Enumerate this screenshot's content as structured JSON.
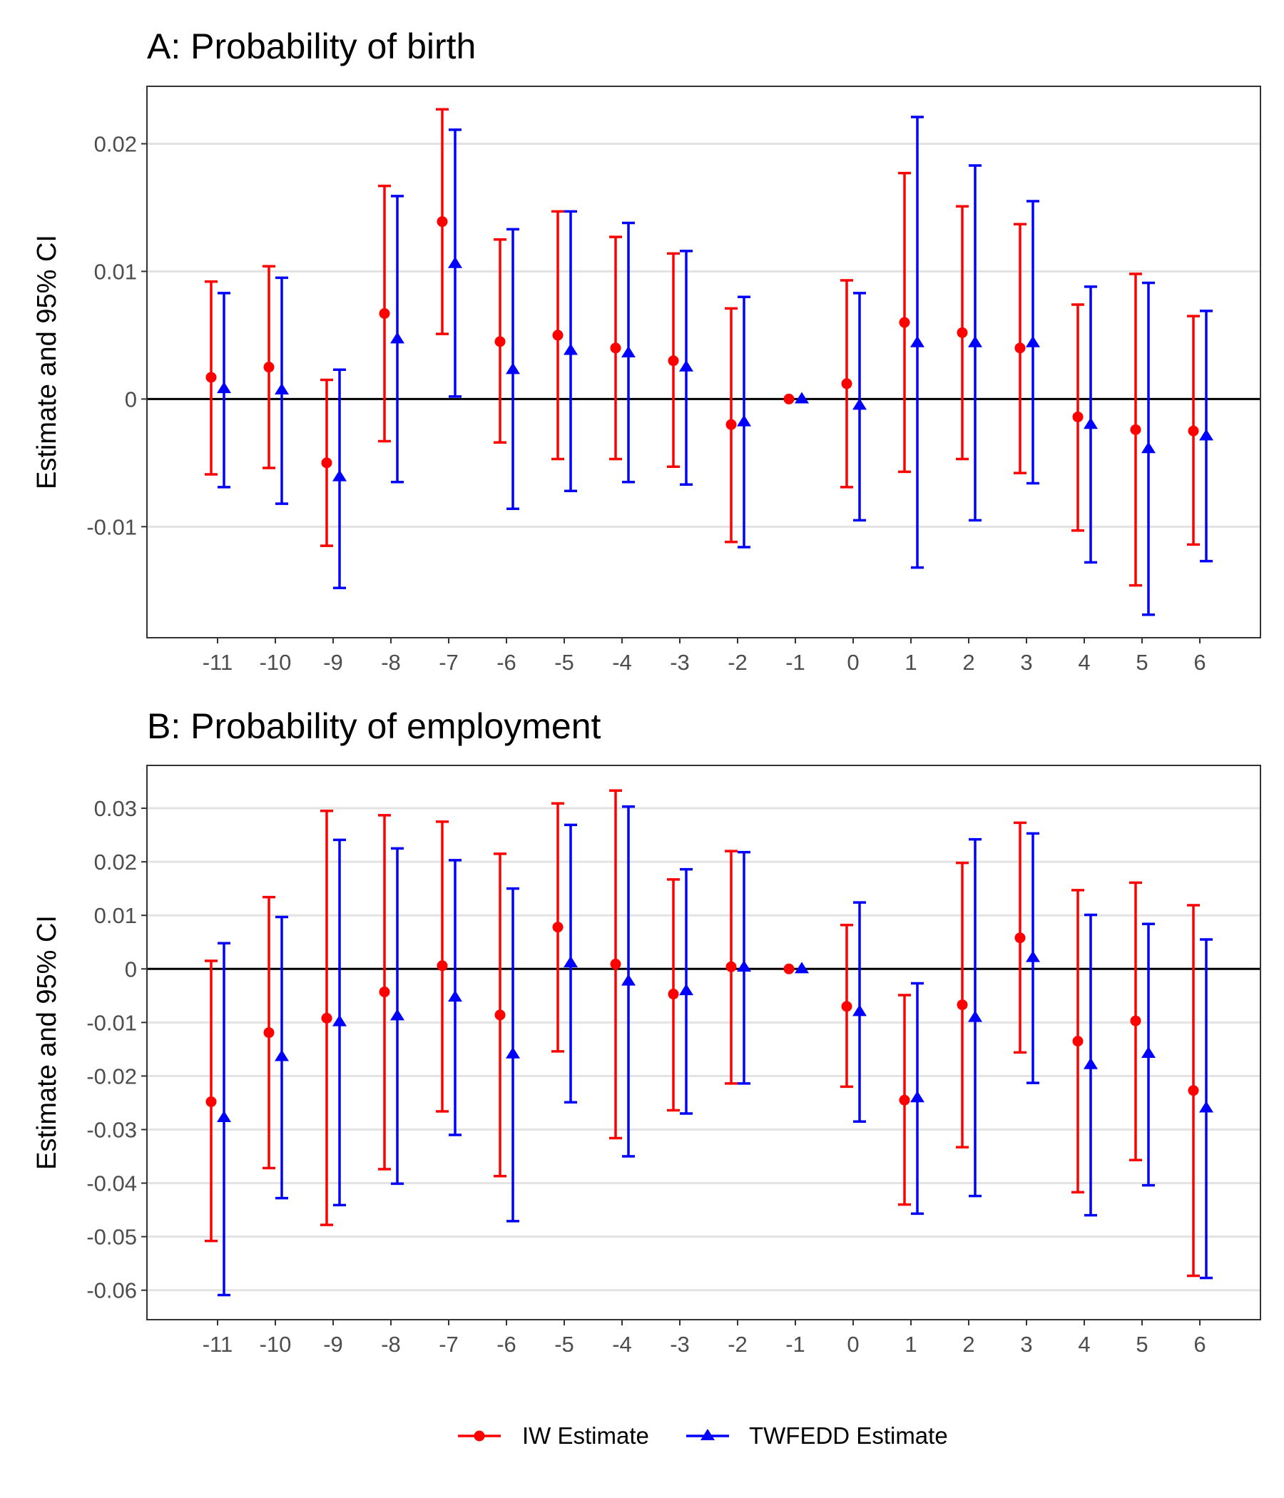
{
  "chart_data": [
    {
      "type": "errorbar",
      "title": "A: Probability of birth",
      "xlabel": "",
      "ylabel": "Estimate and 95% CI",
      "categories": [
        "-11",
        "-10",
        "-9",
        "-8",
        "-7",
        "-6",
        "-5",
        "-4",
        "-3",
        "-2",
        "-1",
        "0",
        "1",
        "2",
        "3",
        "4",
        "5",
        "6"
      ],
      "ylim": [
        -0.0187,
        0.0245
      ],
      "yticks": [
        -0.01,
        0,
        0.01,
        0.02
      ],
      "ytick_labels": [
        "-0.01",
        "0",
        "0.01",
        "0.02"
      ],
      "grid": true,
      "hline": 0,
      "series": [
        {
          "name": "IW Estimate",
          "color": "#ff0000",
          "marker": "circle",
          "values": [
            0.0017,
            0.0025,
            -0.005,
            0.0067,
            0.0139,
            0.0045,
            0.005,
            0.004,
            0.003,
            -0.002,
            0,
            0.0012,
            0.006,
            0.0052,
            0.004,
            -0.0014,
            -0.0024,
            -0.0025
          ],
          "lower": [
            -0.0059,
            -0.0054,
            -0.0115,
            -0.0033,
            0.0051,
            -0.0034,
            -0.0047,
            -0.0047,
            -0.0053,
            -0.0112,
            0,
            -0.0069,
            -0.0057,
            -0.0047,
            -0.0058,
            -0.0103,
            -0.0146,
            -0.0114
          ],
          "upper": [
            0.0092,
            0.0104,
            0.0015,
            0.0167,
            0.0227,
            0.0125,
            0.0147,
            0.0127,
            0.0114,
            0.0071,
            0,
            0.0093,
            0.0177,
            0.0151,
            0.0137,
            0.0074,
            0.0098,
            0.0065
          ]
        },
        {
          "name": "TWFEDD Estimate",
          "color": "#0000ff",
          "marker": "triangle",
          "values": [
            0.0008,
            0.0007,
            -0.0061,
            0.0047,
            0.0106,
            0.0023,
            0.0038,
            0.0036,
            0.0025,
            -0.0018,
            0,
            -0.0005,
            0.0044,
            0.0044,
            0.0044,
            -0.002,
            -0.0039,
            -0.0029
          ],
          "lower": [
            -0.0069,
            -0.0082,
            -0.0148,
            -0.0065,
            0.0002,
            -0.0086,
            -0.0072,
            -0.0065,
            -0.0067,
            -0.0116,
            0,
            -0.0095,
            -0.0132,
            -0.0095,
            -0.0066,
            -0.0128,
            -0.0169,
            -0.0127
          ],
          "upper": [
            0.0083,
            0.0095,
            0.0023,
            0.0159,
            0.0211,
            0.0133,
            0.0147,
            0.0138,
            0.0116,
            0.008,
            0,
            0.0083,
            0.0221,
            0.0183,
            0.0155,
            0.0088,
            0.0091,
            0.0069
          ]
        }
      ]
    },
    {
      "type": "errorbar",
      "title": "B: Probability of employment",
      "xlabel": "",
      "ylabel": "Estimate and 95% CI",
      "categories": [
        "-11",
        "-10",
        "-9",
        "-8",
        "-7",
        "-6",
        "-5",
        "-4",
        "-3",
        "-2",
        "-1",
        "0",
        "1",
        "2",
        "3",
        "4",
        "5",
        "6"
      ],
      "ylim": [
        -0.0655,
        0.038
      ],
      "yticks": [
        -0.06,
        -0.05,
        -0.04,
        -0.03,
        -0.02,
        -0.01,
        0,
        0.01,
        0.02,
        0.03
      ],
      "ytick_labels": [
        "-0.06",
        "-0.05",
        "-0.04",
        "-0.03",
        "-0.02",
        "-0.01",
        "0",
        "0.01",
        "0.02",
        "0.03"
      ],
      "grid": true,
      "hline": 0,
      "series": [
        {
          "name": "IW Estimate",
          "color": "#ff0000",
          "marker": "circle",
          "values": [
            -0.0248,
            -0.0119,
            -0.0092,
            -0.0043,
            0.0006,
            -0.0086,
            0.0078,
            0.0009,
            -0.0047,
            0.0004,
            0,
            -0.007,
            -0.0245,
            -0.0067,
            0.0058,
            -0.0135,
            -0.0097,
            -0.0227
          ],
          "lower": [
            -0.0508,
            -0.0372,
            -0.0478,
            -0.0374,
            -0.0266,
            -0.0387,
            -0.0154,
            -0.0316,
            -0.0264,
            -0.0214,
            0,
            -0.022,
            -0.044,
            -0.0333,
            -0.0156,
            -0.0417,
            -0.0357,
            -0.0573
          ],
          "upper": [
            0.0015,
            0.0134,
            0.0295,
            0.0287,
            0.0275,
            0.0215,
            0.0309,
            0.0333,
            0.0167,
            0.022,
            0,
            0.0082,
            -0.0049,
            0.0198,
            0.0273,
            0.0147,
            0.0161,
            0.0119
          ]
        },
        {
          "name": "TWFEDD Estimate",
          "color": "#0000ff",
          "marker": "triangle",
          "values": [
            -0.0278,
            -0.0164,
            -0.0099,
            -0.0088,
            -0.0053,
            -0.0159,
            0.0011,
            -0.0023,
            -0.0041,
            0.0003,
            0,
            -0.008,
            -0.0241,
            -0.0091,
            0.0021,
            -0.0179,
            -0.0158,
            -0.026
          ],
          "lower": [
            -0.0609,
            -0.0428,
            -0.0441,
            -0.0401,
            -0.031,
            -0.0471,
            -0.0249,
            -0.035,
            -0.027,
            -0.0214,
            0,
            -0.0285,
            -0.0457,
            -0.0424,
            -0.0213,
            -0.046,
            -0.0404,
            -0.0577
          ],
          "upper": [
            0.0048,
            0.0097,
            0.0241,
            0.0225,
            0.0203,
            0.015,
            0.0269,
            0.0303,
            0.0186,
            0.0218,
            0,
            0.0124,
            -0.0027,
            0.0242,
            0.0253,
            0.0101,
            0.0084,
            0.0055
          ]
        }
      ]
    }
  ],
  "legend": {
    "position": "bottom",
    "items": [
      {
        "label": "IW Estimate",
        "color": "#ff0000",
        "marker": "circle"
      },
      {
        "label": "TWFEDD Estimate",
        "color": "#0000ff",
        "marker": "triangle"
      }
    ]
  }
}
